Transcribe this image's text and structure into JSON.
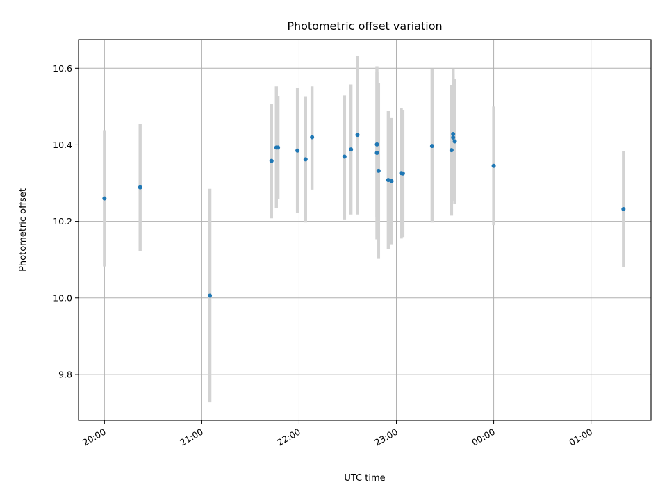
{
  "chart_data": {
    "type": "scatter",
    "title": "Photometric offset variation",
    "xlabel": "UTC time",
    "ylabel": "Photometric offset",
    "xlim": [
      "19:44",
      "01:37"
    ],
    "ylim": [
      9.68,
      10.675
    ],
    "x_ticks": [
      "20:00",
      "21:00",
      "22:00",
      "23:00",
      "00:00",
      "01:00"
    ],
    "y_ticks": [
      "9.8",
      "10.0",
      "10.2",
      "10.4",
      "10.6"
    ],
    "grid": true,
    "error_bar_color": "#d3d3d3",
    "point_color": "#1f77b4",
    "points": [
      {
        "t": "20:00",
        "y": 10.26,
        "lo": 10.082,
        "hi": 10.438
      },
      {
        "t": "20:22",
        "y": 10.289,
        "lo": 10.123,
        "hi": 10.455
      },
      {
        "t": "21:05",
        "y": 10.006,
        "lo": 9.727,
        "hi": 10.285
      },
      {
        "t": "21:43",
        "y": 10.358,
        "lo": 10.208,
        "hi": 10.508
      },
      {
        "t": "21:46",
        "y": 10.393,
        "lo": 10.234,
        "hi": 10.553
      },
      {
        "t": "21:47",
        "y": 10.393,
        "lo": 10.258,
        "hi": 10.528
      },
      {
        "t": "21:59",
        "y": 10.385,
        "lo": 10.222,
        "hi": 10.548
      },
      {
        "t": "22:04",
        "y": 10.362,
        "lo": 10.197,
        "hi": 10.527
      },
      {
        "t": "22:08",
        "y": 10.42,
        "lo": 10.283,
        "hi": 10.553
      },
      {
        "t": "22:28",
        "y": 10.369,
        "lo": 10.205,
        "hi": 10.529
      },
      {
        "t": "22:32",
        "y": 10.388,
        "lo": 10.218,
        "hi": 10.558
      },
      {
        "t": "22:36",
        "y": 10.426,
        "lo": 10.218,
        "hi": 10.633
      },
      {
        "t": "22:48",
        "y": 10.401,
        "lo": 10.212,
        "hi": 10.59
      },
      {
        "t": "22:48",
        "y": 10.379,
        "lo": 10.153,
        "hi": 10.605
      },
      {
        "t": "22:49",
        "y": 10.332,
        "lo": 10.102,
        "hi": 10.562
      },
      {
        "t": "22:55",
        "y": 10.308,
        "lo": 10.128,
        "hi": 10.488
      },
      {
        "t": "22:57",
        "y": 10.305,
        "lo": 10.14,
        "hi": 10.47
      },
      {
        "t": "23:03",
        "y": 10.326,
        "lo": 10.155,
        "hi": 10.497
      },
      {
        "t": "23:04",
        "y": 10.325,
        "lo": 10.159,
        "hi": 10.491
      },
      {
        "t": "23:22",
        "y": 10.397,
        "lo": 10.197,
        "hi": 10.599
      },
      {
        "t": "23:34",
        "y": 10.386,
        "lo": 10.215,
        "hi": 10.557
      },
      {
        "t": "23:35",
        "y": 10.428,
        "lo": 10.267,
        "hi": 10.597
      },
      {
        "t": "23:35",
        "y": 10.419,
        "lo": 10.254,
        "hi": 10.584
      },
      {
        "t": "23:36",
        "y": 10.409,
        "lo": 10.246,
        "hi": 10.572
      },
      {
        "t": "00:00",
        "y": 10.345,
        "lo": 10.19,
        "hi": 10.5
      },
      {
        "t": "01:20",
        "y": 10.232,
        "lo": 10.081,
        "hi": 10.383
      }
    ]
  }
}
